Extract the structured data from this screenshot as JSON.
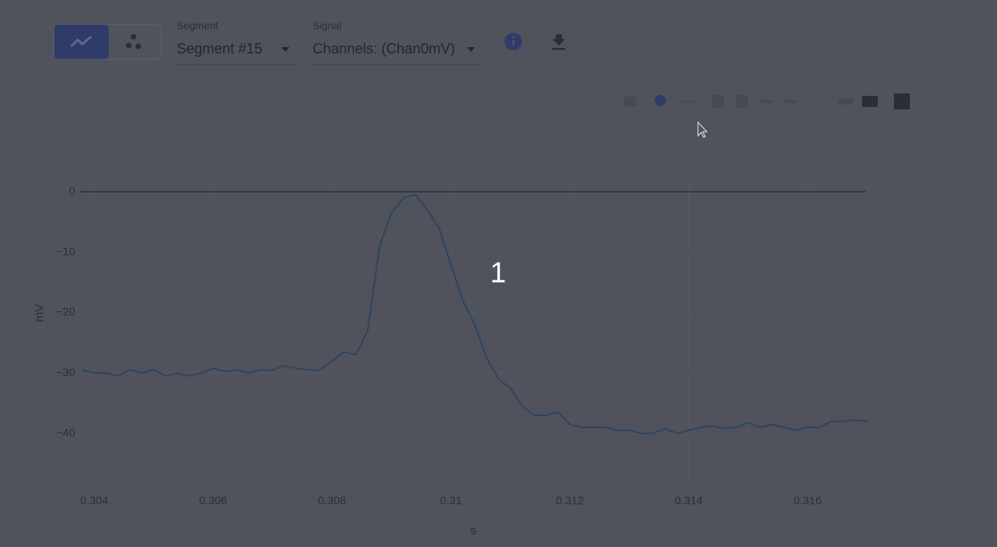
{
  "toolbar": {
    "segment_label": "Segment",
    "segment_value": "Segment #15",
    "signal_label": "Signal",
    "signal_value": "Channels: (Chan0mV)"
  },
  "chart_data": {
    "type": "line",
    "xlabel": "s",
    "ylabel": "mV",
    "annotation": "1",
    "color": "#2c4661",
    "x": [
      0.3038,
      0.304,
      0.3042,
      0.3044,
      0.3046,
      0.3048,
      0.305,
      0.3052,
      0.3054,
      0.3056,
      0.3058,
      0.306,
      0.3062,
      0.3064,
      0.3066,
      0.3068,
      0.307,
      0.3072,
      0.3074,
      0.3076,
      0.3078,
      0.308,
      0.3082,
      0.3084,
      0.3086,
      0.3088,
      0.309,
      0.3092,
      0.3094,
      0.3096,
      0.3098,
      0.31,
      0.3102,
      0.3104,
      0.3106,
      0.3108,
      0.311,
      0.3112,
      0.3114,
      0.3116,
      0.3118,
      0.312,
      0.3122,
      0.3124,
      0.3126,
      0.3128,
      0.313,
      0.3132,
      0.3134,
      0.3136,
      0.3138,
      0.314,
      0.3142,
      0.3144,
      0.3146,
      0.3148,
      0.315,
      0.3152,
      0.3154,
      0.3156,
      0.3158,
      0.316,
      0.3162,
      0.3164,
      0.3166,
      0.3168,
      0.317
    ],
    "values": [
      -29.5,
      -30,
      -30,
      -30.5,
      -29.5,
      -30,
      -29.5,
      -30.5,
      -30,
      -30.5,
      -30,
      -29.2,
      -29.8,
      -29.5,
      -30,
      -29.5,
      -29.5,
      -28.8,
      -29.2,
      -29.5,
      -29.5,
      -28,
      -26.5,
      -27,
      -23,
      -9,
      -3.5,
      -1,
      -0.5,
      -3,
      -6,
      -12,
      -18,
      -22,
      -27.5,
      -31,
      -32.5,
      -35.5,
      -37,
      -37,
      -36.5,
      -38.5,
      -39,
      -39,
      -39,
      -39.5,
      -39.5,
      -40,
      -40,
      -39.2,
      -40,
      -39.5,
      -39,
      -38.8,
      -39.2,
      -39,
      -38.2,
      -39,
      -38.5,
      -39,
      -39.5,
      -39,
      -39,
      -38,
      -38,
      -37.8,
      -38
    ],
    "xlim": [
      0.30376,
      0.31698
    ],
    "ylim": [
      -48.5,
      2
    ],
    "xticks": [
      0.304,
      0.306,
      0.308,
      0.31,
      0.312,
      0.314,
      0.316
    ],
    "yticks": [
      0,
      {
        "value": -10,
        "label": "−10"
      },
      {
        "value": -20,
        "label": "−20"
      },
      {
        "value": -30,
        "label": "−30"
      },
      {
        "value": -40,
        "label": "−40"
      }
    ],
    "grid": true
  }
}
